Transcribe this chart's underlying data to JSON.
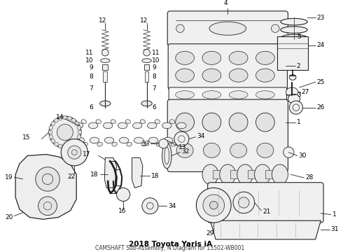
{
  "title": "2018 Toyota Yaris iA",
  "subtitle": "CAMSHAFT Sub-Assembly, N Diagram for 13502-WB001",
  "bg": "#ffffff",
  "lc": "#222222",
  "fs": 6.5
}
